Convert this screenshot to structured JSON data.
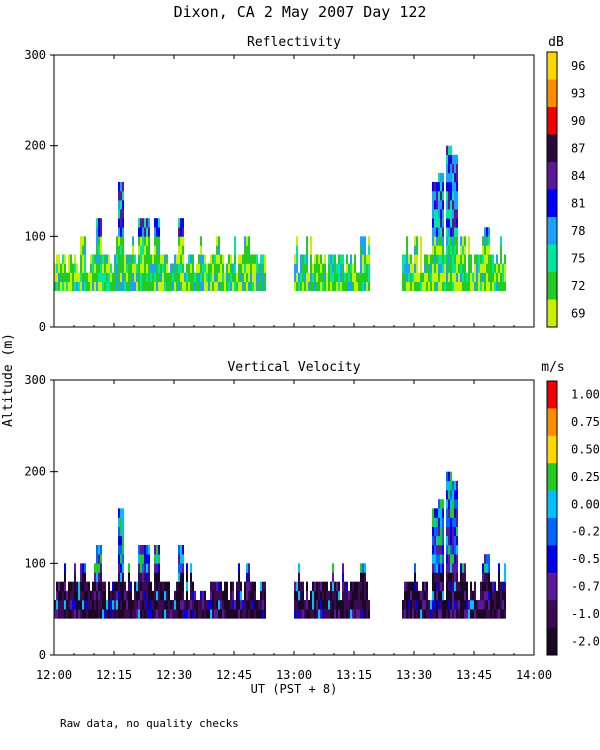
{
  "title": "Dixon, CA  2 May 2007  Day 122",
  "footer_note": "Raw data, no quality checks",
  "y_axis_label": "Altitude (m)",
  "x_axis_label": "UT  (PST + 8)",
  "chart_data": [
    {
      "type": "heatmap",
      "title": "Reflectivity",
      "xlabel": "UT  (PST + 8)",
      "ylabel": "Altitude (m)",
      "xlim_minutes_after_1200": [
        0,
        120
      ],
      "ylim": [
        0,
        300
      ],
      "x_ticks": [
        "12:00",
        "12:15",
        "12:30",
        "12:45",
        "13:00",
        "13:15",
        "13:30",
        "13:45",
        "14:00"
      ],
      "y_ticks": [
        0,
        100,
        200,
        300
      ],
      "colorbar": {
        "unit": "dB",
        "labels": [
          "96",
          "93",
          "90",
          "87",
          "84",
          "81",
          "78",
          "75",
          "72",
          "69"
        ],
        "colors": [
          "#ffd700",
          "#ff8c00",
          "#ee0000",
          "#2a0a3a",
          "#5a189a",
          "#0000ff",
          "#1ea0ff",
          "#00e8a0",
          "#22cc22",
          "#c8f000"
        ]
      },
      "data_segments": [
        {
          "start": "12:00",
          "end": "12:53",
          "typical_top_m": 80,
          "max_top_m": 160,
          "dominant_db": "72-75"
        },
        {
          "start": "13:00",
          "end": "13:19",
          "typical_top_m": 80,
          "max_top_m": 110,
          "dominant_db": "72"
        },
        {
          "start": "13:27",
          "end": "13:53",
          "typical_top_m": 80,
          "max_top_m": 200,
          "dominant_db": "72-81"
        }
      ]
    },
    {
      "type": "heatmap",
      "title": "Vertical Velocity",
      "xlabel": "UT  (PST + 8)",
      "ylabel": "Altitude (m)",
      "xlim_minutes_after_1200": [
        0,
        120
      ],
      "ylim": [
        0,
        300
      ],
      "x_ticks": [
        "12:00",
        "12:15",
        "12:30",
        "12:45",
        "13:00",
        "13:15",
        "13:30",
        "13:45",
        "14:00"
      ],
      "y_ticks": [
        0,
        100,
        200,
        300
      ],
      "colorbar": {
        "unit": "m/s",
        "labels": [
          "1.00",
          "0.75",
          "0.50",
          "0.25",
          "0.00",
          "-0.25",
          "-0.50",
          "-0.75",
          "-1.00",
          "-2.00"
        ],
        "colors": [
          "#ee0000",
          "#ff8c00",
          "#ffd700",
          "#22cc22",
          "#00c0ff",
          "#0066ff",
          "#0000ee",
          "#5a189a",
          "#3a0a55",
          "#1a0822"
        ]
      },
      "data_segments": [
        {
          "start": "12:00",
          "end": "12:53",
          "typical_top_m": 80,
          "max_top_m": 160,
          "dominant_ms": "-2.00 to -1.00"
        },
        {
          "start": "13:00",
          "end": "13:19",
          "typical_top_m": 80,
          "max_top_m": 100,
          "dominant_ms": "-2.00 to -1.00"
        },
        {
          "start": "13:27",
          "end": "13:53",
          "typical_top_m": 80,
          "max_top_m": 200,
          "dominant_ms": "-1.00 to -0.50"
        }
      ]
    }
  ]
}
